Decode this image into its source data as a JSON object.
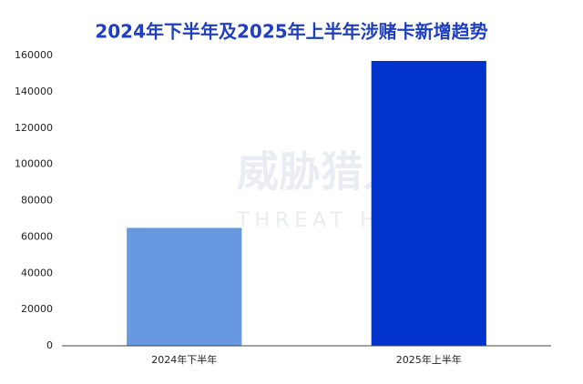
{
  "chart_data": {
    "type": "bar",
    "title": "2024年下半年及2025年上半年涉赌卡新增趋势",
    "categories": [
      "2024年下半年",
      "2025年上半年"
    ],
    "values": [
      65000,
      157000
    ],
    "colors": [
      "#6699e0",
      "#0033cc"
    ],
    "ylim": [
      0,
      160000
    ],
    "yticks": [
      0,
      20000,
      40000,
      60000,
      80000,
      100000,
      120000,
      140000,
      160000
    ],
    "grid": false
  },
  "watermark": {
    "name": "威胁猎人",
    "tagline": "THREAT HUNTER"
  }
}
